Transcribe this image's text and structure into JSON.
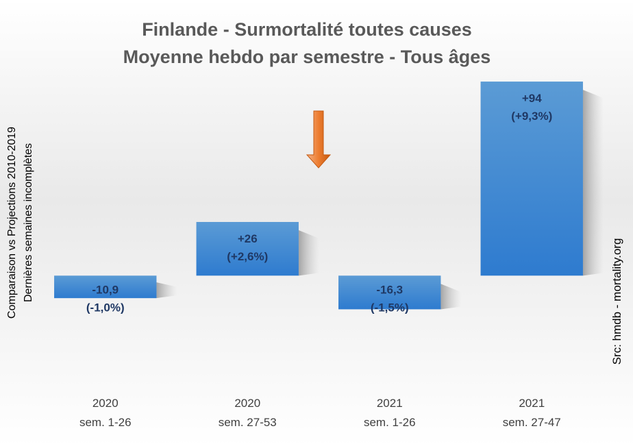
{
  "chart_data": {
    "type": "bar",
    "title": "Finlande - Surmortalité toutes causes",
    "subtitle": "Moyenne hebdo par semestre - Tous âges",
    "ylabel_lines": [
      "Comparaison vs Projections 2010-2019",
      "Dernières semaines incomplètes"
    ],
    "xlabel": "",
    "categories": [
      {
        "year": "2020",
        "period": "sem. 1-26"
      },
      {
        "year": "2020",
        "period": "sem. 27-53"
      },
      {
        "year": "2021",
        "period": "sem. 1-26"
      },
      {
        "year": "2021",
        "period": "sem. 27-47"
      }
    ],
    "values": [
      -10.9,
      26,
      -16.3,
      94
    ],
    "labels": [
      {
        "value": "-10,9",
        "percent": "(-1,0%)"
      },
      {
        "value": "+26",
        "percent": "(+2,6%)"
      },
      {
        "value": "-16,3",
        "percent": "(-1,5%)"
      },
      {
        "value": "+94",
        "percent": "(+9,3%)"
      }
    ],
    "ylim": [
      -50,
      100
    ],
    "grid": false,
    "legend": "none",
    "annotation": {
      "type": "arrow-down",
      "color": "#ed7d31",
      "between_categories": [
        1,
        2
      ]
    },
    "source": "Src: hmdb - mortality.org",
    "bar_color": "#3a87d6"
  }
}
